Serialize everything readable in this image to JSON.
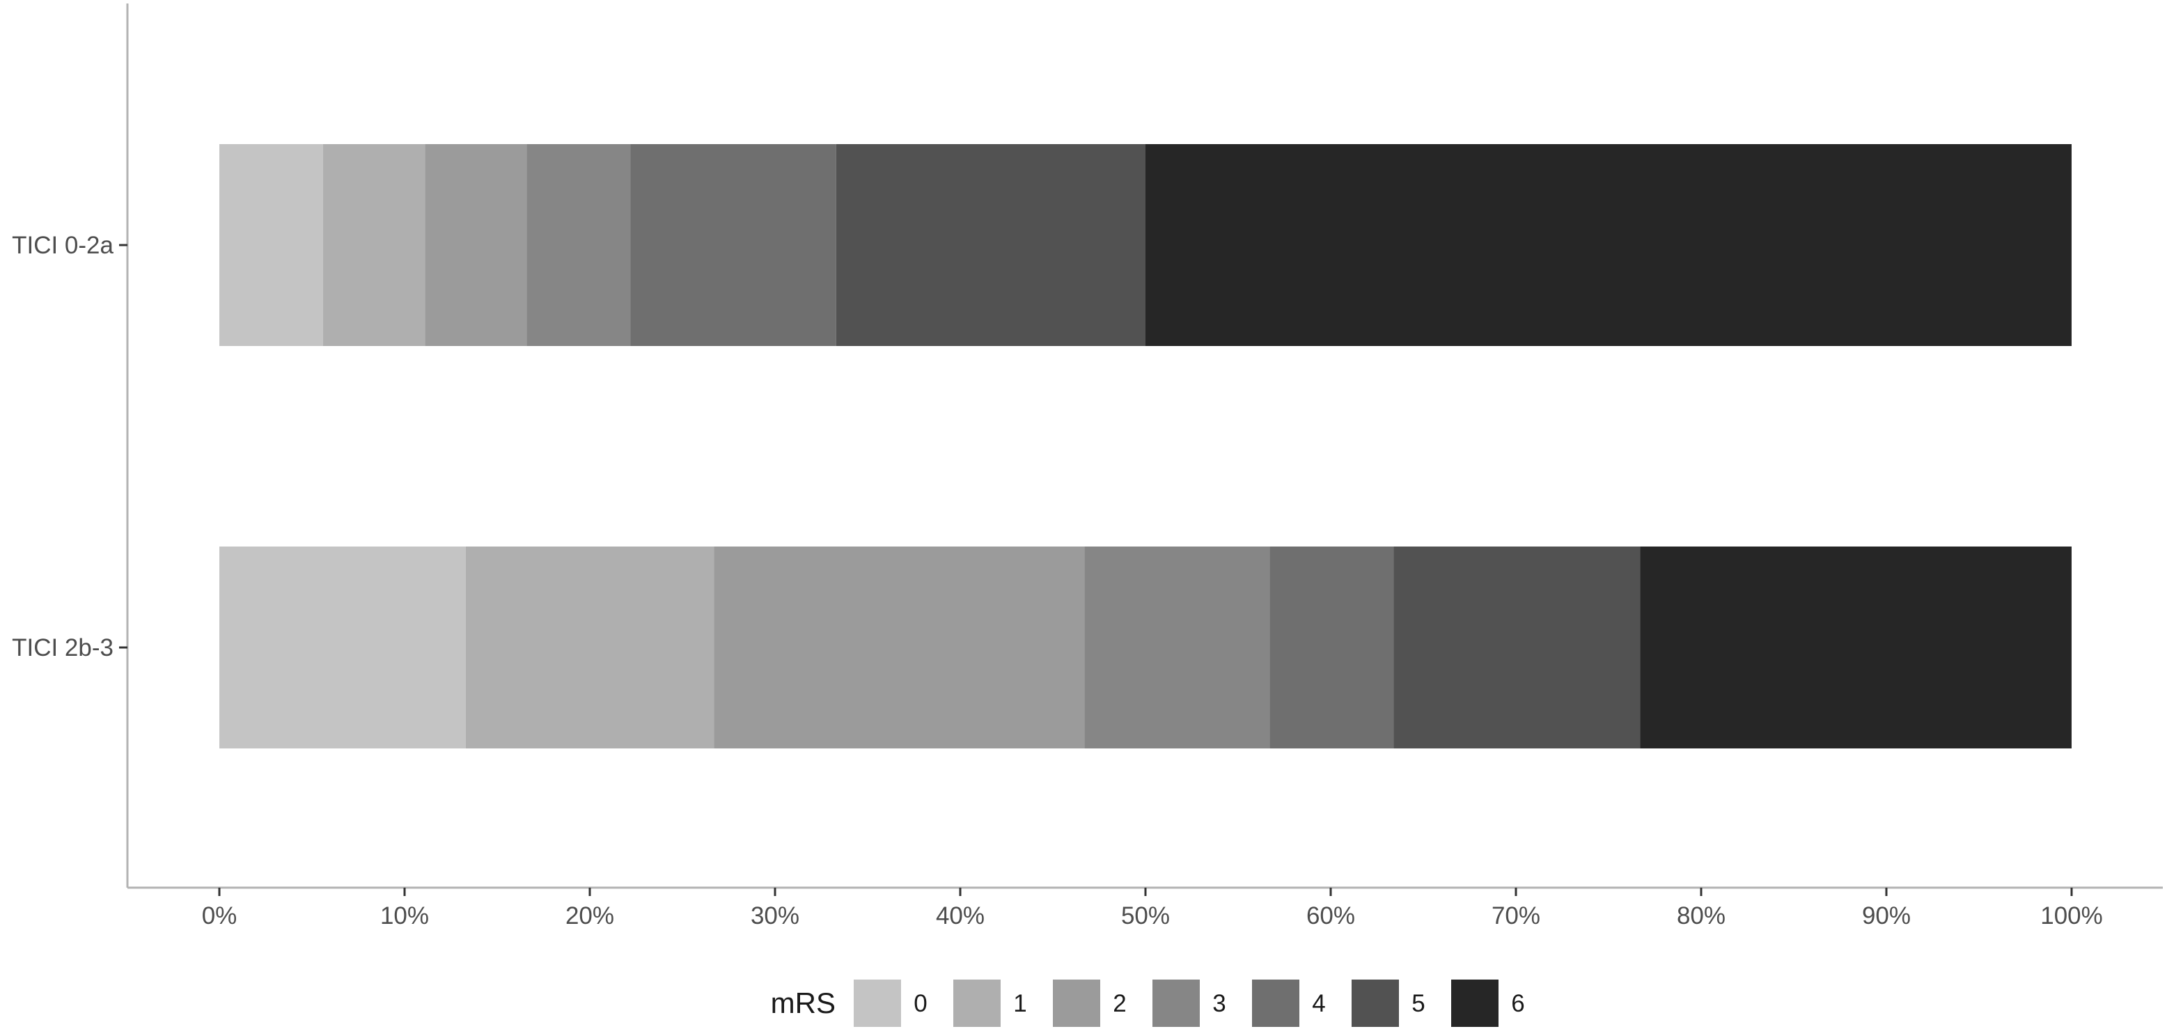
{
  "chart_data": {
    "type": "bar",
    "orientation": "horizontal",
    "stacked": true,
    "percent_stacked": true,
    "categories": [
      "TICI 0-2a",
      "TICI 2b-3"
    ],
    "series": [
      {
        "name": "0",
        "values": [
          5.6,
          13.3
        ],
        "color": "#c4c4c4"
      },
      {
        "name": "1",
        "values": [
          5.5,
          13.4
        ],
        "color": "#afafaf"
      },
      {
        "name": "2",
        "values": [
          5.5,
          20.0
        ],
        "color": "#9b9b9b"
      },
      {
        "name": "3",
        "values": [
          5.6,
          10.0
        ],
        "color": "#868686"
      },
      {
        "name": "4",
        "values": [
          11.1,
          6.7
        ],
        "color": "#6f6f6f"
      },
      {
        "name": "5",
        "values": [
          16.7,
          13.3
        ],
        "color": "#525252"
      },
      {
        "name": "6",
        "values": [
          50.0,
          23.3
        ],
        "color": "#262626"
      }
    ],
    "xlim": [
      0,
      100
    ],
    "x_ticks": [
      "0%",
      "10%",
      "20%",
      "30%",
      "40%",
      "50%",
      "60%",
      "70%",
      "80%",
      "90%",
      "100%"
    ],
    "xlabel": "",
    "ylabel": "",
    "title": "",
    "legend": {
      "title": "mRS",
      "position": "bottom",
      "entries": [
        "0",
        "1",
        "2",
        "3",
        "4",
        "5",
        "6"
      ]
    },
    "grid": false
  }
}
